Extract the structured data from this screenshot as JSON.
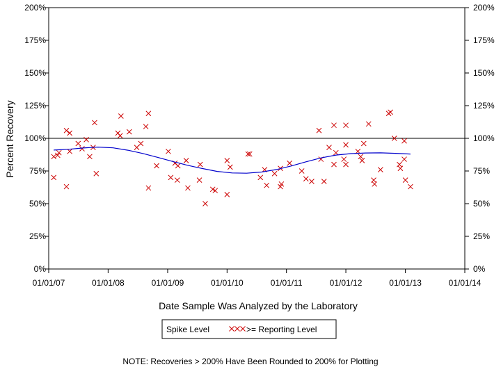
{
  "chart_data": {
    "type": "scatter",
    "title": "",
    "xlabel": "Date Sample Was Analyzed by the Laboratory",
    "ylabel": "Percent Recovery",
    "x_type": "date",
    "xlim": [
      "2007-01-01",
      "2014-01-01"
    ],
    "ylim": [
      0,
      200
    ],
    "x_ticks": [
      {
        "date": "2007-01-01",
        "label": "01/01/07"
      },
      {
        "date": "2008-01-01",
        "label": "01/01/08"
      },
      {
        "date": "2009-01-01",
        "label": "01/01/09"
      },
      {
        "date": "2010-01-01",
        "label": "01/01/10"
      },
      {
        "date": "2011-01-01",
        "label": "01/01/11"
      },
      {
        "date": "2012-01-01",
        "label": "01/01/12"
      },
      {
        "date": "2013-01-01",
        "label": "01/01/13"
      },
      {
        "date": "2014-01-01",
        "label": "01/01/14"
      }
    ],
    "y_ticks": [
      {
        "value": 0,
        "label": "0%"
      },
      {
        "value": 25,
        "label": "25%"
      },
      {
        "value": 50,
        "label": "50%"
      },
      {
        "value": 75,
        "label": "75%"
      },
      {
        "value": 100,
        "label": "100%"
      },
      {
        "value": 125,
        "label": "125%"
      },
      {
        "value": 150,
        "label": "150%"
      },
      {
        "value": 175,
        "label": "175%"
      },
      {
        "value": 200,
        "label": "200%"
      }
    ],
    "grid": false,
    "reference_line": {
      "y": 100,
      "color": "#000000"
    },
    "legend": {
      "placement": "bottom-center",
      "entries": [
        {
          "label": "Spike Level",
          "marker": "none"
        },
        {
          "label": ">= Reporting Level",
          "marker": "xxx",
          "color": "#cc0000"
        }
      ]
    },
    "series": [
      {
        "name": ">= Reporting Level",
        "marker": "x",
        "color": "#cc0000",
        "points": [
          {
            "x": "2007-02-01",
            "y": 86
          },
          {
            "x": "2007-02-01",
            "y": 70
          },
          {
            "x": "2007-02-25",
            "y": 87
          },
          {
            "x": "2007-03-05",
            "y": 89
          },
          {
            "x": "2007-04-20",
            "y": 106
          },
          {
            "x": "2007-04-20",
            "y": 63
          },
          {
            "x": "2007-05-10",
            "y": 104
          },
          {
            "x": "2007-05-10",
            "y": 90
          },
          {
            "x": "2007-07-01",
            "y": 96
          },
          {
            "x": "2007-07-25",
            "y": 92
          },
          {
            "x": "2007-08-20",
            "y": 99
          },
          {
            "x": "2007-09-10",
            "y": 86
          },
          {
            "x": "2007-10-01",
            "y": 93
          },
          {
            "x": "2007-10-10",
            "y": 112
          },
          {
            "x": "2007-10-20",
            "y": 73
          },
          {
            "x": "2008-03-01",
            "y": 104
          },
          {
            "x": "2008-03-15",
            "y": 102
          },
          {
            "x": "2008-03-20",
            "y": 117
          },
          {
            "x": "2008-05-10",
            "y": 105
          },
          {
            "x": "2008-06-25",
            "y": 93
          },
          {
            "x": "2008-07-20",
            "y": 96
          },
          {
            "x": "2008-08-20",
            "y": 109
          },
          {
            "x": "2008-09-05",
            "y": 119
          },
          {
            "x": "2008-09-05",
            "y": 62
          },
          {
            "x": "2008-10-25",
            "y": 79
          },
          {
            "x": "2009-01-05",
            "y": 90
          },
          {
            "x": "2009-01-20",
            "y": 70
          },
          {
            "x": "2009-02-15",
            "y": 81
          },
          {
            "x": "2009-03-01",
            "y": 68
          },
          {
            "x": "2009-03-05",
            "y": 79
          },
          {
            "x": "2009-04-25",
            "y": 83
          },
          {
            "x": "2009-05-05",
            "y": 62
          },
          {
            "x": "2009-07-15",
            "y": 68
          },
          {
            "x": "2009-07-20",
            "y": 80
          },
          {
            "x": "2009-08-20",
            "y": 50
          },
          {
            "x": "2009-10-05",
            "y": 61
          },
          {
            "x": "2009-10-20",
            "y": 60
          },
          {
            "x": "2010-01-01",
            "y": 83
          },
          {
            "x": "2010-01-01",
            "y": 57
          },
          {
            "x": "2010-01-20",
            "y": 78
          },
          {
            "x": "2010-05-10",
            "y": 88
          },
          {
            "x": "2010-05-20",
            "y": 88
          },
          {
            "x": "2010-07-25",
            "y": 70
          },
          {
            "x": "2010-08-20",
            "y": 76
          },
          {
            "x": "2010-09-01",
            "y": 64
          },
          {
            "x": "2010-10-20",
            "y": 73
          },
          {
            "x": "2010-11-25",
            "y": 63
          },
          {
            "x": "2010-11-25",
            "y": 77
          },
          {
            "x": "2010-12-01",
            "y": 65
          },
          {
            "x": "2011-01-20",
            "y": 81
          },
          {
            "x": "2011-04-05",
            "y": 75
          },
          {
            "x": "2011-05-01",
            "y": 69
          },
          {
            "x": "2011-06-05",
            "y": 67
          },
          {
            "x": "2011-07-20",
            "y": 106
          },
          {
            "x": "2011-08-01",
            "y": 84
          },
          {
            "x": "2011-08-20",
            "y": 67
          },
          {
            "x": "2011-09-20",
            "y": 93
          },
          {
            "x": "2011-10-20",
            "y": 80
          },
          {
            "x": "2011-10-20",
            "y": 110
          },
          {
            "x": "2011-11-01",
            "y": 89
          },
          {
            "x": "2011-12-20",
            "y": 84
          },
          {
            "x": "2012-01-01",
            "y": 110
          },
          {
            "x": "2012-01-01",
            "y": 80
          },
          {
            "x": "2012-01-01",
            "y": 95
          },
          {
            "x": "2012-03-15",
            "y": 90
          },
          {
            "x": "2012-04-01",
            "y": 86
          },
          {
            "x": "2012-04-10",
            "y": 83
          },
          {
            "x": "2012-04-20",
            "y": 96
          },
          {
            "x": "2012-05-20",
            "y": 111
          },
          {
            "x": "2012-06-20",
            "y": 68
          },
          {
            "x": "2012-06-25",
            "y": 65
          },
          {
            "x": "2012-08-01",
            "y": 76
          },
          {
            "x": "2012-09-20",
            "y": 119
          },
          {
            "x": "2012-10-01",
            "y": 120
          },
          {
            "x": "2012-10-25",
            "y": 100
          },
          {
            "x": "2012-11-25",
            "y": 80
          },
          {
            "x": "2012-12-01",
            "y": 77
          },
          {
            "x": "2012-12-25",
            "y": 98
          },
          {
            "x": "2012-12-25",
            "y": 84
          },
          {
            "x": "2013-01-01",
            "y": 68
          },
          {
            "x": "2013-02-01",
            "y": 63
          }
        ]
      },
      {
        "name": "Spike Level",
        "type": "line",
        "color": "#0000cc",
        "points": [
          {
            "x": "2007-02-01",
            "y": 91
          },
          {
            "x": "2007-05-01",
            "y": 91.6
          },
          {
            "x": "2007-08-01",
            "y": 92.6
          },
          {
            "x": "2007-11-01",
            "y": 93.3
          },
          {
            "x": "2008-02-01",
            "y": 92.7
          },
          {
            "x": "2008-05-01",
            "y": 90.9
          },
          {
            "x": "2008-08-01",
            "y": 88.4
          },
          {
            "x": "2008-11-01",
            "y": 85.4
          },
          {
            "x": "2009-02-01",
            "y": 82.3
          },
          {
            "x": "2009-05-01",
            "y": 79.4
          },
          {
            "x": "2009-08-01",
            "y": 76.9
          },
          {
            "x": "2009-11-01",
            "y": 74.7
          },
          {
            "x": "2010-02-01",
            "y": 73.5
          },
          {
            "x": "2010-05-01",
            "y": 73.3
          },
          {
            "x": "2010-08-01",
            "y": 74.2
          },
          {
            "x": "2010-11-01",
            "y": 76.1
          },
          {
            "x": "2011-02-01",
            "y": 78.9
          },
          {
            "x": "2011-05-01",
            "y": 82
          },
          {
            "x": "2011-08-01",
            "y": 85
          },
          {
            "x": "2011-11-01",
            "y": 87.2
          },
          {
            "x": "2012-02-01",
            "y": 88.3
          },
          {
            "x": "2012-05-01",
            "y": 88.8
          },
          {
            "x": "2012-08-01",
            "y": 88.9
          },
          {
            "x": "2012-11-01",
            "y": 88.5
          },
          {
            "x": "2013-02-01",
            "y": 88
          }
        ]
      }
    ],
    "note": "NOTE: Recoveries > 200% Have Been Rounded to 200% for Plotting"
  }
}
